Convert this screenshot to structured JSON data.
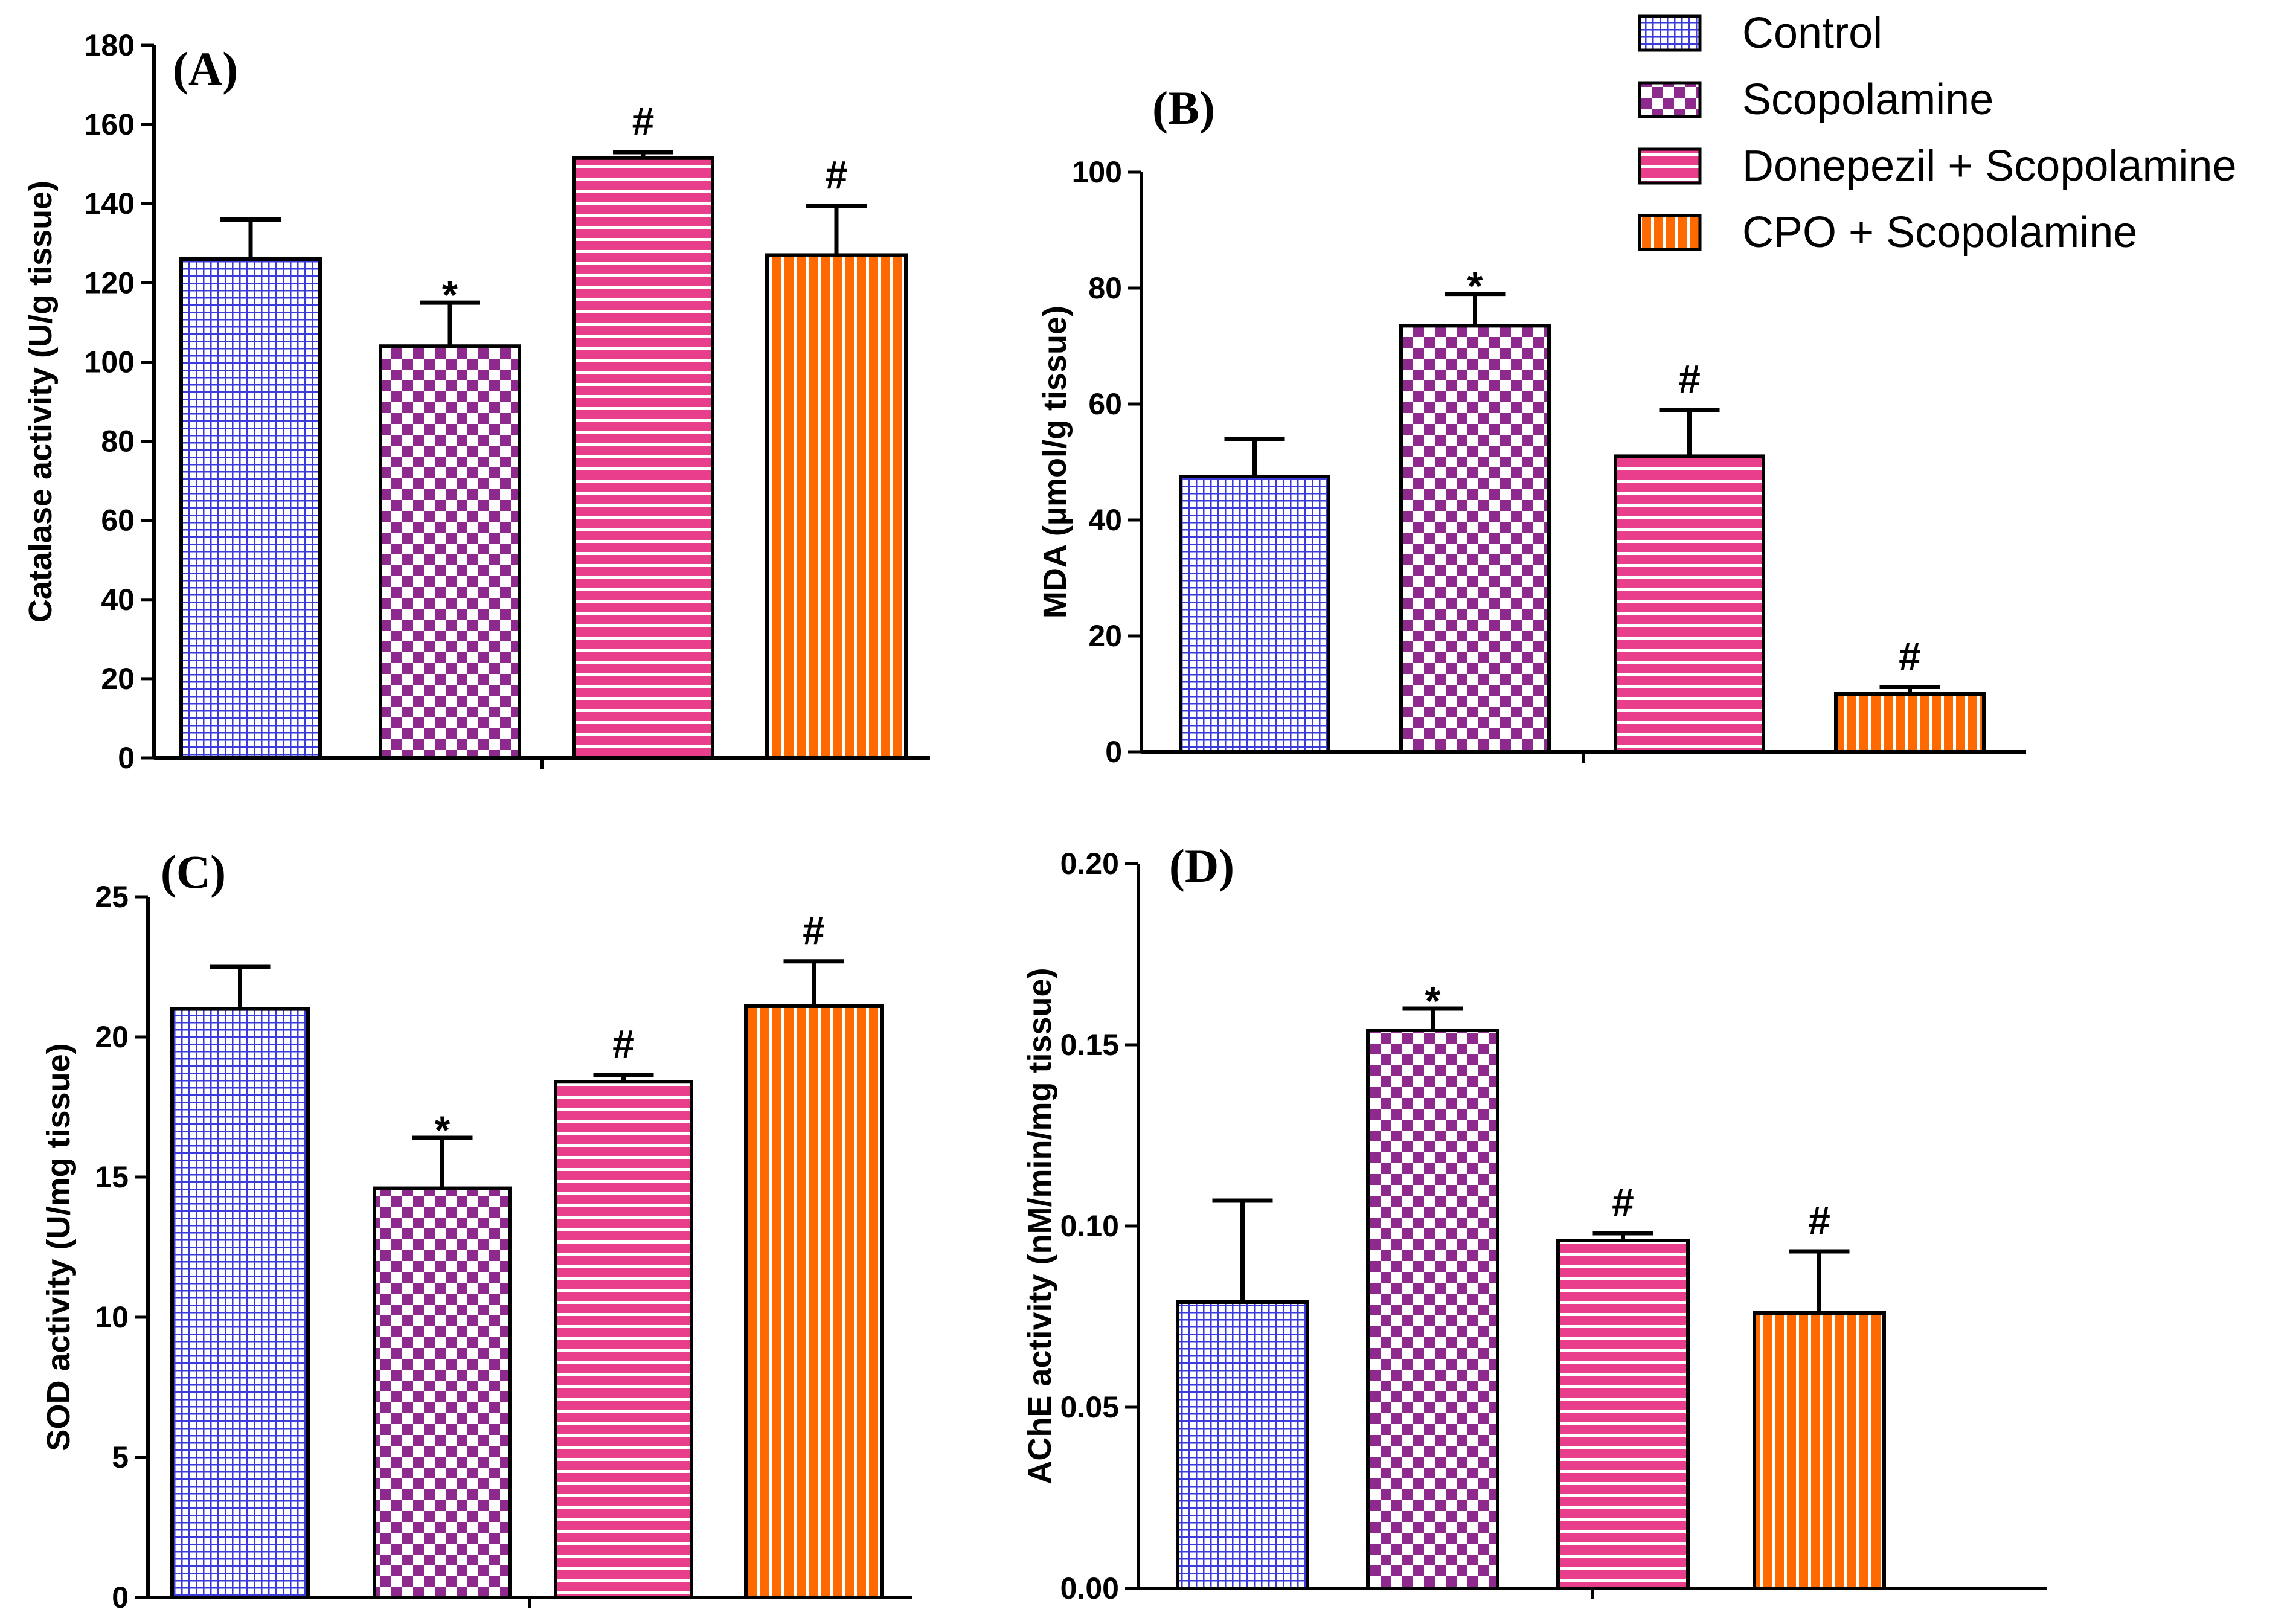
{
  "colors": {
    "control": "#3b3bdb",
    "scopolamine": "#8e2a8e",
    "donepezil": "#e83e8c",
    "cpo": "#ff6a00"
  },
  "legend": [
    {
      "label": "Control",
      "color": "#3b3bdb",
      "pattern": "pat-control"
    },
    {
      "label": "Scopolamine",
      "color": "#8e2a8e",
      "pattern": "pat-scopolamine"
    },
    {
      "label": "Donepezil + Scopolamine",
      "color": "#e83e8c",
      "pattern": "pat-donepezil"
    },
    {
      "label": "CPO + Scopolamine",
      "color": "#ff6a00",
      "pattern": "pat-cpo"
    }
  ],
  "chart_data": [
    {
      "panel": "(A)",
      "type": "bar",
      "ylabel": "Catalase activity (U/g tissue)",
      "ylim": [
        0,
        180
      ],
      "yticks": [
        "0",
        "20",
        "40",
        "60",
        "80",
        "100",
        "120",
        "140",
        "160",
        "180"
      ],
      "categories": [
        "Control",
        "Scopolamine",
        "Donepezil + Scopolamine",
        "CPO + Scopolamine"
      ],
      "values": [
        126,
        104,
        151.5,
        127
      ],
      "errors": [
        10,
        11,
        1.5,
        12.5
      ],
      "annotations": [
        "",
        "*",
        "#",
        "#"
      ]
    },
    {
      "panel": "(B)",
      "type": "bar",
      "ylabel": "MDA (µmol/g tissue)",
      "ylim": [
        0,
        100
      ],
      "yticks": [
        "0",
        "20",
        "40",
        "60",
        "80",
        "100"
      ],
      "categories": [
        "Control",
        "Scopolamine",
        "Donepezil + Scopolamine",
        "CPO + Scopolamine"
      ],
      "values": [
        47.5,
        73.5,
        51,
        10
      ],
      "errors": [
        6.5,
        5.5,
        8,
        1.2
      ],
      "annotations": [
        "",
        "*",
        "#",
        "#"
      ]
    },
    {
      "panel": "(C)",
      "type": "bar",
      "ylabel": "SOD activity (U/mg tissue)",
      "ylim": [
        0,
        25
      ],
      "yticks": [
        "0",
        "5",
        "10",
        "15",
        "20",
        "25"
      ],
      "categories": [
        "Control",
        "Scopolamine",
        "Donepezil + Scopolamine",
        "CPO + Scopolamine"
      ],
      "values": [
        21,
        14.6,
        18.4,
        21.1
      ],
      "errors": [
        1.5,
        1.8,
        0.25,
        1.6
      ],
      "annotations": [
        "",
        "*",
        "#",
        "#"
      ]
    },
    {
      "panel": "(D)",
      "type": "bar",
      "ylabel": "AChE activity (nM/min/mg tissue)",
      "ylim": [
        0,
        0.2
      ],
      "yticks": [
        "0.00",
        "0.05",
        "0.10",
        "0.15",
        "0.20"
      ],
      "categories": [
        "Control",
        "Scopolamine",
        "Donepezil + Scopolamine",
        "CPO + Scopolamine"
      ],
      "values": [
        0.079,
        0.154,
        0.096,
        0.076
      ],
      "errors": [
        0.028,
        0.006,
        0.002,
        0.017
      ],
      "annotations": [
        "",
        "*",
        "#",
        "#"
      ]
    }
  ]
}
